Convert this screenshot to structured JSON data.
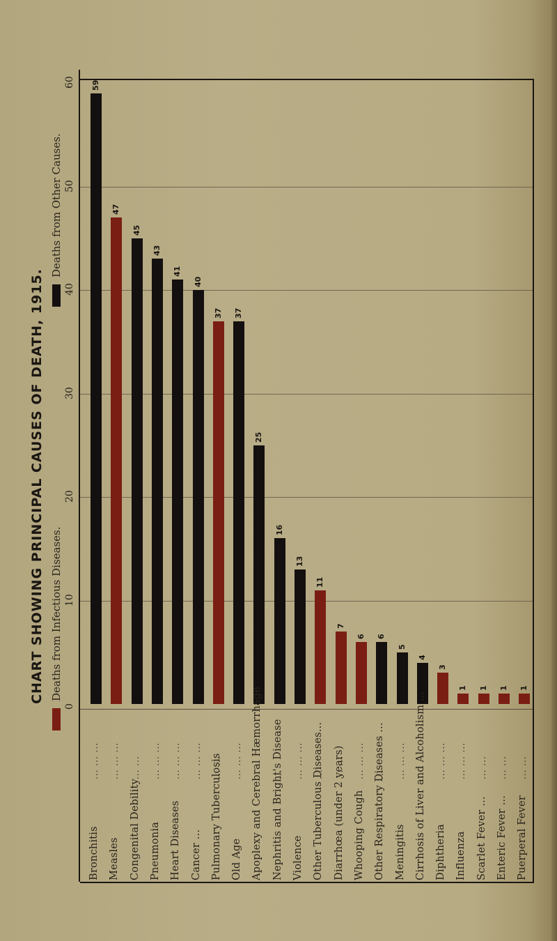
{
  "title": "CHART SHOWING PRINCIPAL CAUSES OF DEATH, 1915.",
  "legend": [
    {
      "label": "Deaths from Infectious Diseases.",
      "color": "#7a1e14"
    },
    {
      "label": "Deaths from Other Causes.",
      "color": "#141010"
    }
  ],
  "axis": {
    "ticks": [
      "0",
      "10",
      "20",
      "30",
      "40",
      "50",
      "60"
    ]
  },
  "colors": {
    "infectious": "#7a1e14",
    "other": "#141010",
    "background": "#b7ab84"
  },
  "chart_data": {
    "type": "bar",
    "title": "CHART SHOWING PRINCIPAL CAUSES OF DEATH, 1915.",
    "xlabel": "",
    "ylabel": "",
    "ylim": [
      0,
      60
    ],
    "grid": true,
    "legend_position": "top-left (rotated)",
    "orientation": "vertical bars on a page rotated 90° counter-clockwise",
    "categories": [
      "Bronchitis",
      "Measles",
      "Congenital Debility",
      "Pneumonia",
      "Heart Diseases",
      "Cancer",
      "Pulmonary Tuberculosis",
      "Old Age",
      "Apoplexy and Cerebral Hæmorrhage",
      "Nephritis and Bright's Disease",
      "Violence",
      "Other Tuberculous Diseases",
      "Diarrhœa (under 2 years)",
      "Whooping Cough",
      "Other Respiratory Diseases",
      "Meningitis",
      "Cirrhosis of Liver and Alcoholism",
      "Diphtheria",
      "Influenza",
      "Scarlet Fever",
      "Enteric Fever",
      "Puerperal Fever"
    ],
    "values": [
      59,
      47,
      45,
      43,
      41,
      40,
      37,
      37,
      25,
      16,
      13,
      11,
      7,
      6,
      6,
      5,
      4,
      3,
      1,
      1,
      1,
      1
    ],
    "series_type": [
      "other",
      "infectious",
      "other",
      "other",
      "other",
      "other",
      "infectious",
      "other",
      "other",
      "other",
      "other",
      "infectious",
      "infectious",
      "infectious",
      "other",
      "other",
      "other",
      "infectious",
      "infectious",
      "infectious",
      "infectious",
      "infectious"
    ],
    "series": [
      {
        "name": "Deaths from Infectious Diseases.",
        "values": [
          0,
          47,
          0,
          0,
          0,
          0,
          37,
          0,
          0,
          0,
          0,
          11,
          7,
          6,
          0,
          0,
          0,
          3,
          1,
          1,
          1,
          1
        ]
      },
      {
        "name": "Deaths from Other Causes.",
        "values": [
          59,
          0,
          45,
          43,
          41,
          40,
          0,
          37,
          25,
          16,
          13,
          0,
          0,
          0,
          6,
          5,
          4,
          0,
          0,
          0,
          0,
          0
        ]
      }
    ]
  },
  "rows": [
    {
      "label": "Bronchitis",
      "dots": "...   ...   ...",
      "value": "59",
      "type": "other"
    },
    {
      "label": "Measles",
      "dots": "...   ...   ...",
      "value": "47",
      "type": "infectious"
    },
    {
      "label": "Congenital Debility",
      "dots": "...   ...",
      "value": "45",
      "type": "other"
    },
    {
      "label": "Pneumonia",
      "dots": "...   ...   ...",
      "value": "43",
      "type": "other"
    },
    {
      "label": "Heart Diseases",
      "dots": "...   ...   ...",
      "value": "41",
      "type": "other"
    },
    {
      "label": "Cancer ...",
      "dots": "...   ...   ...",
      "value": "40",
      "type": "other"
    },
    {
      "label": "Pulmonary Tuberculosis",
      "dots": "...   ...",
      "value": "37",
      "type": "infectious"
    },
    {
      "label": "Old Age",
      "dots": "...   ...   ...",
      "value": "37",
      "type": "other"
    },
    {
      "label": "Apoplexy and Cerebral Hæmorrhage",
      "dots": "",
      "value": "25",
      "type": "other"
    },
    {
      "label": "Nephritis and Bright's Disease",
      "dots": "...",
      "value": "16",
      "type": "other"
    },
    {
      "label": "Violence",
      "dots": "...   ...   ...",
      "value": "13",
      "type": "other"
    },
    {
      "label": "Other Tuberculous Diseases...",
      "dots": "...",
      "value": "11",
      "type": "infectious"
    },
    {
      "label": "Diarrhœa (under 2 years)",
      "dots": "...   ...",
      "value": "7",
      "type": "infectious"
    },
    {
      "label": "Whooping Cough",
      "dots": "...   ...   ...",
      "value": "6",
      "type": "infectious"
    },
    {
      "label": "Other Respiratory Diseases ...",
      "dots": "...",
      "value": "6",
      "type": "other"
    },
    {
      "label": "Meningitis",
      "dots": "...   ...   ...",
      "value": "5",
      "type": "other"
    },
    {
      "label": "Cirrhosis of Liver and Alcoholism ...",
      "dots": "",
      "value": "4",
      "type": "other"
    },
    {
      "label": "Diphtheria",
      "dots": "...   ...   ...",
      "value": "3",
      "type": "infectious"
    },
    {
      "label": "Influenza",
      "dots": "...   ...   ...",
      "value": "1",
      "type": "infectious"
    },
    {
      "label": "Scarlet Fever ...",
      "dots": "...   ...",
      "value": "1",
      "type": "infectious"
    },
    {
      "label": "Enteric Fever ...",
      "dots": "...   ...",
      "value": "1",
      "type": "infectious"
    },
    {
      "label": "Puerperal Fever",
      "dots": "...   ...",
      "value": "1",
      "type": "infectious"
    }
  ]
}
